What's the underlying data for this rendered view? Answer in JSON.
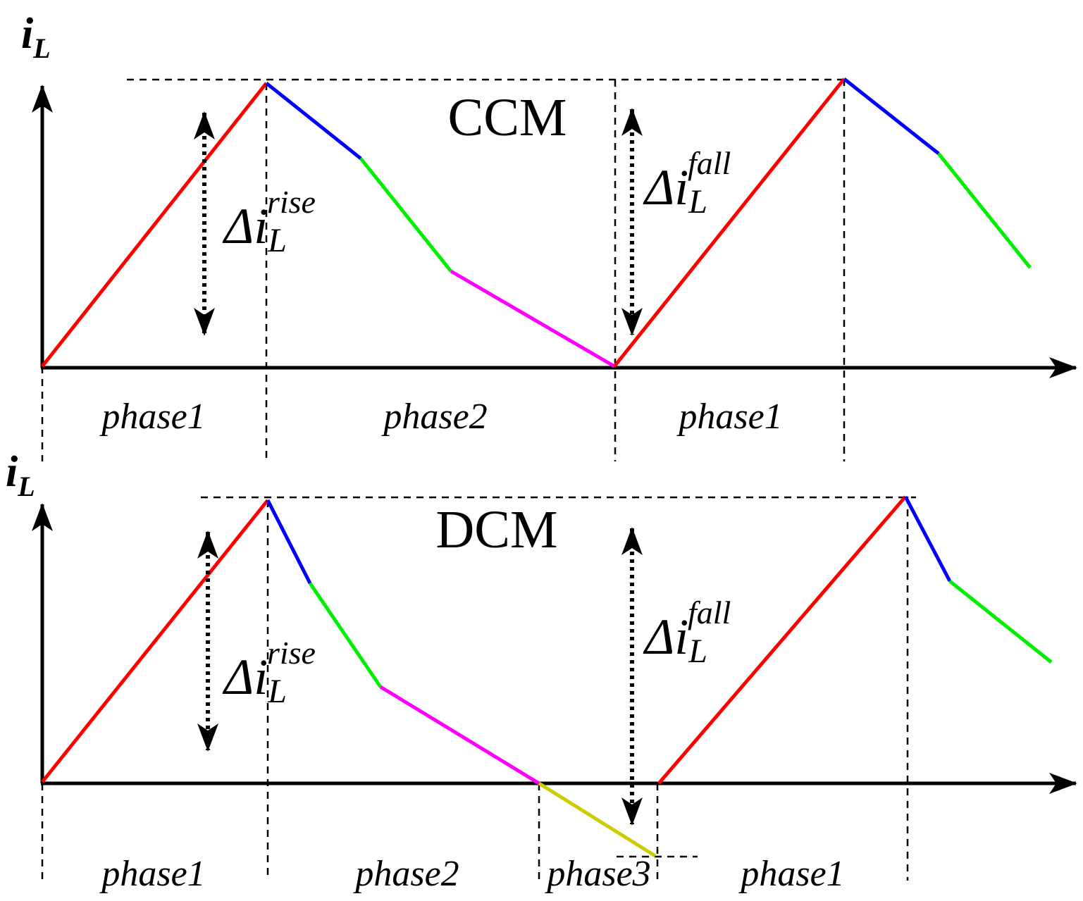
{
  "panels": [
    {
      "mode": "CCM",
      "y_label": {
        "base": "i",
        "sub": "L"
      },
      "delta_rise": {
        "base": "Δi",
        "sub": "L",
        "sup": "rise"
      },
      "delta_fall": {
        "base": "Δi",
        "sub": "L",
        "sup": "fall"
      },
      "phases": [
        "phase1",
        "phase2",
        "phase1"
      ]
    },
    {
      "mode": "DCM",
      "y_label": {
        "base": "i",
        "sub": "L"
      },
      "delta_rise": {
        "base": "Δi",
        "sub": "L",
        "sup": "rise"
      },
      "delta_fall": {
        "base": "Δi",
        "sub": "L",
        "sup": "fall"
      },
      "phases": [
        "phase1",
        "phase2",
        "phase3",
        "phase1"
      ]
    }
  ]
}
